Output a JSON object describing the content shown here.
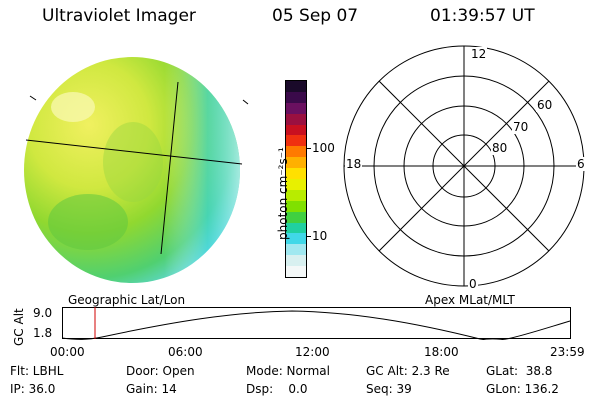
{
  "header": {
    "instrument": "Ultraviolet Imager",
    "date": "05 Sep 07",
    "time": "01:39:57 UT"
  },
  "colorbar": {
    "label": "photon cm⁻²s⁻¹",
    "ticks": [
      "100",
      "10"
    ],
    "colors": [
      "#1a0a2a",
      "#3a0a4a",
      "#6a1060",
      "#9a1040",
      "#c81020",
      "#f03010",
      "#ff7a00",
      "#ffb000",
      "#ffe000",
      "#e8f000",
      "#b8ec00",
      "#80e000",
      "#40d040",
      "#20d0a0",
      "#40d8e8",
      "#a0e8f0",
      "#d8f0f0",
      "#f4f8f8"
    ]
  },
  "left_panel": {
    "caption": "Geographic Lat/Lon"
  },
  "polar_plot": {
    "caption": "Apex MLat/MLT",
    "mlt_labels": {
      "top": "12",
      "bottom": "0",
      "left": "18",
      "right": "6"
    },
    "lat_labels": [
      "60",
      "70",
      "80"
    ]
  },
  "altitude_plot": {
    "ylabel": "GC Alt",
    "yticks": [
      "9.0",
      "1.8"
    ],
    "xticks": [
      "00:00",
      "06:00",
      "12:00",
      "18:00",
      "23:59"
    ]
  },
  "info": {
    "row1": [
      "Flt: LBHL",
      "Door: Open",
      "Mode: Normal",
      "GC Alt: 2.3 Re",
      "GLat:  38.8"
    ],
    "row2": [
      "IP: 36.0",
      "Gain: 14",
      "Dsp:    0.0",
      "Seq: 39",
      "GLon: 136.2"
    ]
  }
}
